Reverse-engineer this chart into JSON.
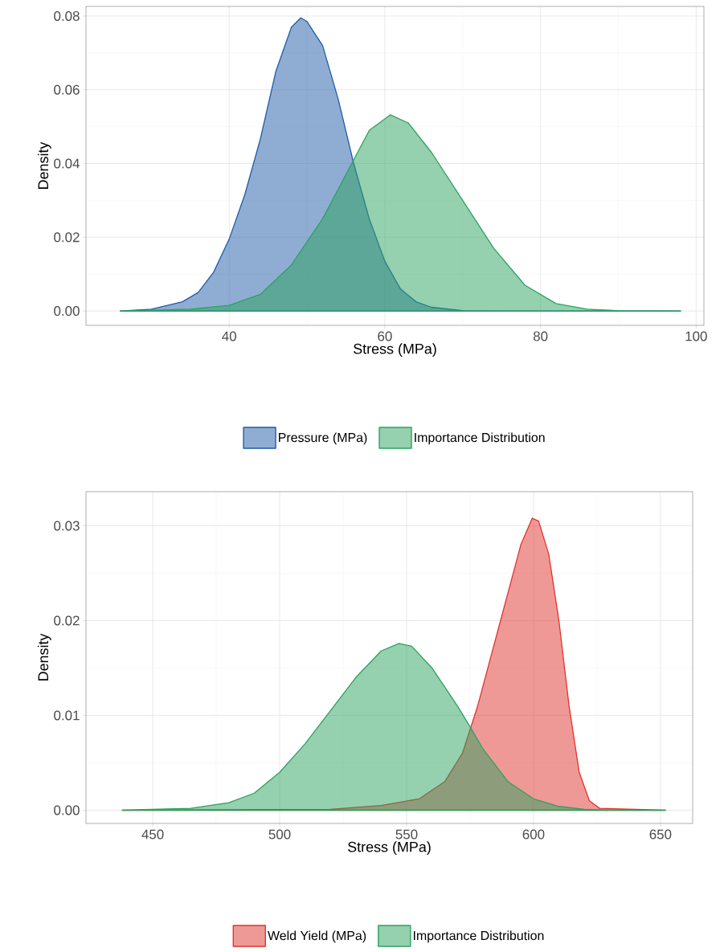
{
  "chart_data": [
    {
      "type": "area",
      "xlabel": "Stress (MPa)",
      "ylabel": "Density",
      "grid": true,
      "legend": "bottom",
      "xlim": [
        21.6,
        101.0
      ],
      "ylim": [
        -0.0039,
        0.0826
      ],
      "xticks": [
        40,
        60,
        80,
        100
      ],
      "yticks": [
        {
          "value": 0,
          "label": "0.00"
        },
        {
          "value": 0.02,
          "label": "0.02"
        },
        {
          "value": 0.04,
          "label": "0.04"
        },
        {
          "value": 0.06,
          "label": "0.06"
        },
        {
          "value": 0.08,
          "label": "0.08"
        }
      ],
      "series": [
        {
          "name": "Pressure (MPa)",
          "color": "#1f5ca8",
          "x": [
            26,
            30,
            34,
            36,
            38,
            40,
            42,
            44,
            46,
            48,
            49.2,
            50,
            52,
            54,
            56,
            58,
            60,
            62,
            64,
            66,
            70,
            75,
            98
          ],
          "values": [
            0,
            0.0005,
            0.0025,
            0.005,
            0.0105,
            0.0195,
            0.0315,
            0.0466,
            0.065,
            0.077,
            0.0795,
            0.0785,
            0.072,
            0.0575,
            0.04,
            0.025,
            0.0135,
            0.006,
            0.0025,
            0.001,
            0.0001,
            0,
            0
          ]
        },
        {
          "name": "Importance Distribution",
          "color": "#2ca25f",
          "x": [
            26,
            35,
            40,
            44,
            48,
            52,
            55,
            58,
            60.7,
            63,
            66,
            70,
            74,
            78,
            82,
            86,
            90,
            98
          ],
          "values": [
            0,
            0.0005,
            0.0015,
            0.0045,
            0.0125,
            0.025,
            0.037,
            0.049,
            0.0532,
            0.051,
            0.043,
            0.03,
            0.017,
            0.007,
            0.002,
            0.0005,
            0.0001,
            0
          ]
        }
      ]
    },
    {
      "type": "area",
      "xlabel": "Stress (MPa)",
      "ylabel": "Density",
      "grid": true,
      "legend": "bottom",
      "xlim": [
        423.7,
        662.7
      ],
      "ylim": [
        -0.0014,
        0.0336
      ],
      "xticks": [
        450,
        500,
        550,
        600,
        650
      ],
      "yticks": [
        {
          "value": 0,
          "label": "0.00"
        },
        {
          "value": 0.01,
          "label": "0.01"
        },
        {
          "value": 0.02,
          "label": "0.02"
        },
        {
          "value": 0.03,
          "label": "0.03"
        }
      ],
      "series": [
        {
          "name": "Weld Yield (MPa)",
          "color": "#e0332e",
          "x": [
            438,
            520,
            540,
            555,
            565,
            572,
            578,
            584,
            590,
            595,
            599.5,
            602,
            606,
            610,
            614,
            618,
            622,
            626,
            652
          ],
          "values": [
            0,
            0.0001,
            0.0005,
            0.0012,
            0.003,
            0.006,
            0.011,
            0.017,
            0.023,
            0.028,
            0.0308,
            0.0305,
            0.027,
            0.02,
            0.011,
            0.004,
            0.001,
            0.0002,
            0
          ]
        },
        {
          "name": "Importance Distribution",
          "color": "#2ca25f",
          "x": [
            438,
            465,
            480,
            490,
            500,
            510,
            520,
            530,
            540,
            547,
            552,
            560,
            570,
            575,
            580,
            590,
            600,
            610,
            620,
            630,
            652
          ],
          "values": [
            0,
            0.0002,
            0.0008,
            0.0018,
            0.004,
            0.007,
            0.0105,
            0.014,
            0.0168,
            0.0176,
            0.0173,
            0.015,
            0.011,
            0.0088,
            0.0065,
            0.003,
            0.0012,
            0.0004,
            0.0001,
            0,
            0
          ]
        }
      ]
    }
  ]
}
